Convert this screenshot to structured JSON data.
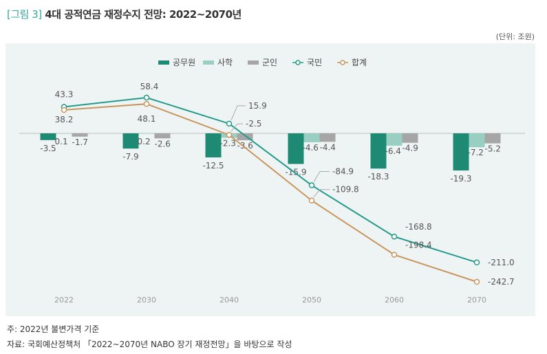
{
  "title": {
    "tag": "[그림 3]",
    "text": "4대 공적연금 재정수지 전망: 2022~2070년"
  },
  "unit": "(단위: 조원)",
  "notes": {
    "note": "주: 2022년 불변가격 기준",
    "source": "자료: 국회예산정책처 「2022~2070년 NABO 장기 재정전망」을 바탕으로 작성"
  },
  "chart_data": {
    "type": "bar+line",
    "categories": [
      "2022",
      "2030",
      "2040",
      "2050",
      "2060",
      "2070"
    ],
    "legend_position": "top-center",
    "grid": false,
    "bar_series": [
      {
        "name": "공무원",
        "color": "#1f8a74",
        "values": [
          -3.5,
          -7.9,
          -12.5,
          -15.9,
          -18.3,
          -19.3
        ]
      },
      {
        "name": "사학",
        "color": "#98cfc2",
        "values": [
          0.1,
          0.2,
          -2.3,
          -4.6,
          -6.4,
          -7.2
        ]
      },
      {
        "name": "군인",
        "color": "#a6a6a6",
        "values": [
          -1.7,
          -2.6,
          -3.6,
          -4.4,
          -4.9,
          -5.2
        ]
      }
    ],
    "line_series": [
      {
        "name": "국민",
        "color": "#23998a",
        "values": [
          43.3,
          58.4,
          15.9,
          -84.9,
          -168.8,
          -211.0
        ]
      },
      {
        "name": "합계",
        "color": "#c9955e",
        "values": [
          38.2,
          48.1,
          -2.5,
          -109.8,
          -198.4,
          -242.7
        ]
      }
    ]
  }
}
